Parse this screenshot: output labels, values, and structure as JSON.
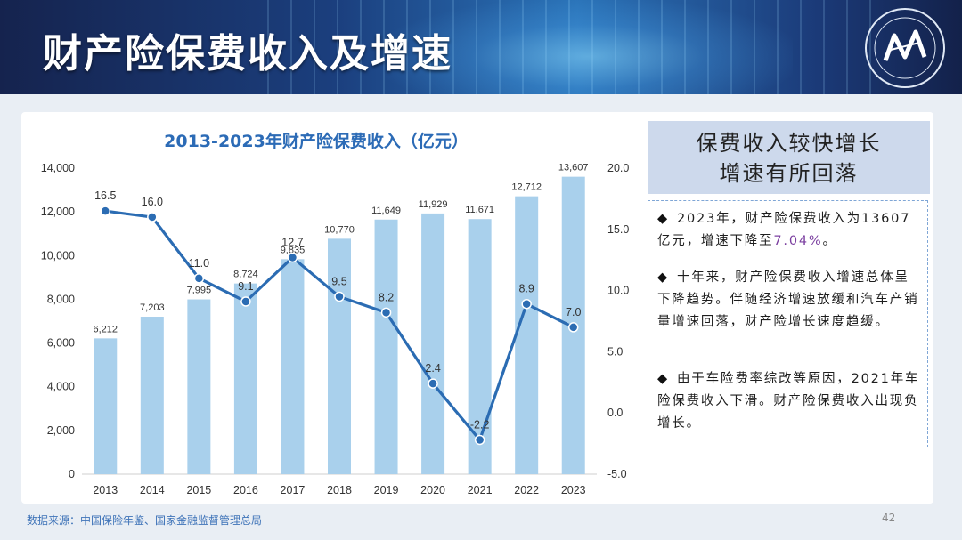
{
  "slide": {
    "title": "财产险保费收入及增速",
    "page_number": "42",
    "source": "数据来源：中国保险年鉴、国家金融监督管理总局"
  },
  "side_panel": {
    "heading_line1": "保费收入较快增长",
    "heading_line2": "增速有所回落",
    "bullets": [
      {
        "mark": "◆",
        "text_before": "2023年，财产险保费收入为13607亿元，增速下降至",
        "highlight": "7.04%",
        "text_after": "。"
      },
      {
        "mark": "◆",
        "text": "十年来，财产险保费收入增速总体呈下降趋势。伴随经济增速放缓和汽车产销量增速回落，财产险增长速度趋缓。"
      },
      {
        "mark": "◆",
        "text": "由于车险费率综改等原因，2021年车险保费收入下滑。财产险保费收入出现负增长。"
      }
    ]
  },
  "colors": {
    "bar": "#a9d0ec",
    "line": "#2b6cb3",
    "title": "#2c6bb6",
    "source": "#3e73b8",
    "highlight": "#7b3fa0"
  },
  "chart_data": {
    "type": "bar",
    "title": "2013-2023年财产险保费收入（亿元）",
    "categories": [
      "2013",
      "2014",
      "2015",
      "2016",
      "2017",
      "2018",
      "2019",
      "2020",
      "2021",
      "2022",
      "2023"
    ],
    "series": [
      {
        "kind": "bar",
        "axis": "left",
        "values": [
          6212,
          7203,
          7995,
          8724,
          9835,
          10770,
          11649,
          11929,
          11671,
          12712,
          13607
        ],
        "labels": [
          "6,212",
          "7,203",
          "7,995",
          "8,724",
          "9,835",
          "10,770",
          "11,649",
          "11,929",
          "11,671",
          "12,712",
          "13,607"
        ]
      },
      {
        "kind": "line",
        "axis": "right",
        "values": [
          16.5,
          16.0,
          11.0,
          9.1,
          12.7,
          9.5,
          8.2,
          2.4,
          -2.2,
          8.9,
          7.0
        ],
        "labels": [
          "16.5",
          "16.0",
          "11.0",
          "9.1",
          "12.7",
          "9.5",
          "8.2",
          "2.4",
          "-2.2",
          "8.9",
          "7.0"
        ]
      }
    ],
    "y_left": {
      "min": 0,
      "max": 14000,
      "ticks": [
        "0",
        "2,000",
        "4,000",
        "6,000",
        "8,000",
        "10,000",
        "12,000",
        "14,000"
      ],
      "tick_values": [
        0,
        2000,
        4000,
        6000,
        8000,
        10000,
        12000,
        14000
      ]
    },
    "y_right": {
      "min": -5,
      "max": 20,
      "ticks": [
        "-5.0",
        "0.0",
        "5.0",
        "10.0",
        "15.0",
        "20.0"
      ],
      "tick_values": [
        -5,
        0,
        5,
        10,
        15,
        20
      ]
    },
    "grid": false,
    "legend": "none"
  }
}
